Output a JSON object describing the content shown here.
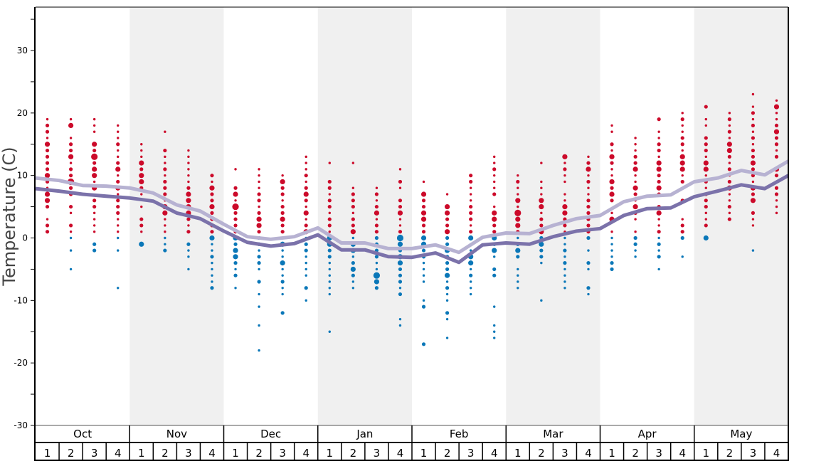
{
  "chart_data": {
    "type": "scatter",
    "title": "",
    "ylabel": "Temperature (C)",
    "xlabel": "",
    "ylim": [
      -30,
      36.9
    ],
    "yticks": [
      -30,
      -20,
      -10,
      0,
      10,
      20,
      30
    ],
    "yminor_step": 5,
    "months": [
      "Oct",
      "Nov",
      "Dec",
      "Jan",
      "Feb",
      "Mar",
      "Apr",
      "May"
    ],
    "weeks": [
      "1",
      "2",
      "3",
      "4"
    ],
    "shaded_months": [
      "Nov",
      "Jan",
      "Mar",
      "May"
    ],
    "colors": {
      "warm": "#cc0a2a",
      "cold": "#0a77b8",
      "line_dark": "#7b72aa",
      "line_light": "#b7b2d2",
      "shade": "#f0f0f0"
    },
    "dot_encoding": "per week: top temperature and one digit per 1 degree downward; digit = relative frequency size (0 none, 1-4)",
    "dots": [
      {
        "top": 19,
        "sizes": "1221322223213320122"
      },
      {
        "top": 19,
        "sizes": "1301223122422021021101001"
      },
      {
        "top": 19,
        "sizes": "1110324233130221111022"
      },
      {
        "top": 18,
        "sizes": "111211231231222111101000001"
      },
      {
        "top": 15,
        "sizes": "11132332101022103"
      },
      {
        "top": 17,
        "sizes": "10021121222133111112"
      },
      {
        "top": 14,
        "sizes": "11111123333212021101"
      },
      {
        "top": 10,
        "sizes": "2132232222311211112"
      },
      {
        "top": 11,
        "sizes": "10023142222323321201"
      },
      {
        "top": 11,
        "sizes": "111122123322212210201010010001"
      },
      {
        "top": 10,
        "sizes": "13221223221311311211002"
      },
      {
        "top": 13,
        "sizes": "111212321312312211110201"
      },
      {
        "top": 12,
        "sizes": "1002212212213322111111000001"
      },
      {
        "top": 12,
        "sizes": "100012221223133123211"
      },
      {
        "top": 8,
        "sizes": "12123122222211432"
      },
      {
        "top": 11,
        "sizes": "10210223112432332221200011"
      },
      {
        "top": 9,
        "sizes": "103223322332211110012000002"
      },
      {
        "top": 7,
        "sizes": "103322322322231211021001"
      },
      {
        "top": 10,
        "sizes": "22111222123113312111"
      },
      {
        "top": 13,
        "sizes": "112111201332232310220000100111"
      },
      {
        "top": 10,
        "sizes": "1211314332123201111"
      },
      {
        "top": 12,
        "sizes": "10011133122323221000001"
      },
      {
        "top": 13,
        "sizes": "3121101133221112121111"
      },
      {
        "top": 13,
        "sizes": "12312112222222010210021"
      },
      {
        "top": 18,
        "sizes": "110213211323201301111122"
      },
      {
        "top": 16,
        "sizes": "11122311321321012211"
      },
      {
        "top": 19,
        "sizes": "2011221332232023112121201"
      },
      {
        "top": 20,
        "sizes": "121122133312002001222001"
      },
      {
        "top": 21,
        "sizes": "2011022213312122211203"
      },
      {
        "top": 20,
        "sizes": "121213321212311212"
      },
      {
        "top": 23,
        "sizes": "10121212122322132302110001"
      },
      {
        "top": 22,
        "sizes": "1311232212032022111"
      }
    ],
    "series": [
      {
        "name": "light",
        "values": [
          9.6,
          9.2,
          8.4,
          8.3,
          8.0,
          7.2,
          5.3,
          4.3,
          2.2,
          0.2,
          -0.2,
          0.2,
          1.6,
          -0.8,
          -0.8,
          -1.7,
          -1.7,
          -1.1,
          -2.3,
          0.1,
          0.8,
          0.7,
          2.0,
          3.1,
          3.6,
          5.8,
          6.7,
          6.9,
          9.0,
          9.6,
          10.8,
          10.1,
          12.3
        ]
      },
      {
        "name": "dark",
        "values": [
          7.9,
          7.5,
          7.0,
          6.7,
          6.4,
          5.9,
          4.0,
          3.1,
          1.1,
          -0.7,
          -1.3,
          -0.9,
          0.5,
          -1.9,
          -1.9,
          -3.0,
          -3.1,
          -2.4,
          -3.9,
          -1.1,
          -0.8,
          -1.0,
          0.2,
          1.1,
          1.5,
          3.6,
          4.7,
          4.8,
          6.6,
          7.5,
          8.5,
          7.9,
          10.0
        ]
      }
    ],
    "series_x": "week boundaries 0..32"
  }
}
